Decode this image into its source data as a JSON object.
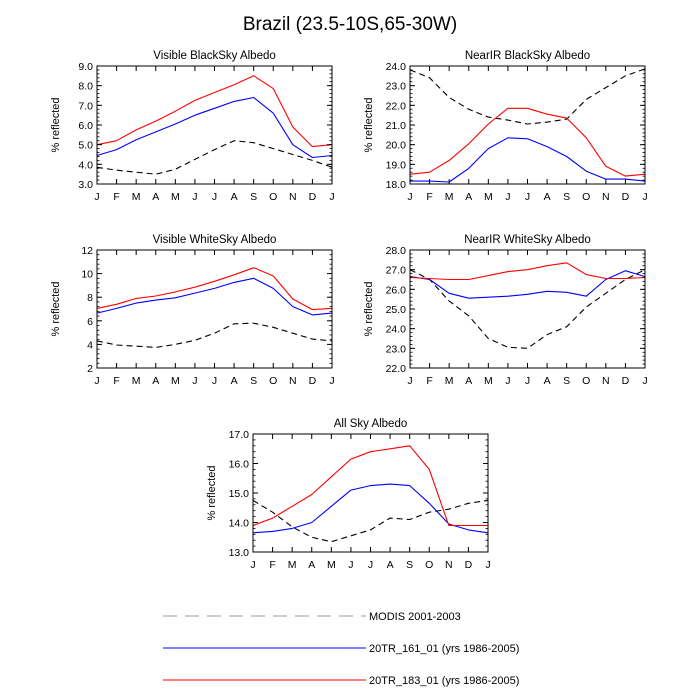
{
  "figure": {
    "title": "Brazil (23.5-10S,65-30W)",
    "months": [
      "J",
      "F",
      "M",
      "A",
      "M",
      "J",
      "J",
      "A",
      "S",
      "O",
      "N",
      "D",
      "J"
    ]
  },
  "legend": [
    {
      "label": "MODIS 2001-2003",
      "color": "#000000",
      "dash": true
    },
    {
      "label": "20TR_161_01 (yrs 1986-2005)",
      "color": "#0000ff",
      "dash": false
    },
    {
      "label": "20TR_183_01 (yrs 1986-2005)",
      "color": "#ff0000",
      "dash": false
    }
  ],
  "chart_data": [
    {
      "type": "line",
      "title": "Visible BlackSky Albedo",
      "xlabel": "",
      "ylabel": "% reflected",
      "categories": [
        "J",
        "F",
        "M",
        "A",
        "M",
        "J",
        "J",
        "A",
        "S",
        "O",
        "N",
        "D",
        "J"
      ],
      "ylim": [
        3.0,
        9.0
      ],
      "yticks": [
        "3.0",
        "4.0",
        "5.0",
        "6.0",
        "7.0",
        "8.0",
        "9.0"
      ],
      "series": [
        {
          "name": "MODIS 2001-2003",
          "color": "#000000",
          "dash": true,
          "values": [
            3.85,
            3.7,
            3.6,
            3.5,
            3.75,
            4.25,
            4.75,
            5.2,
            5.1,
            4.8,
            4.5,
            4.2,
            3.85
          ]
        },
        {
          "name": "20TR_161_01 (yrs 1986-2005)",
          "color": "#0000ff",
          "dash": false,
          "values": [
            4.45,
            4.75,
            5.25,
            5.65,
            6.05,
            6.5,
            6.85,
            7.2,
            7.4,
            6.6,
            5.0,
            4.35,
            4.45
          ]
        },
        {
          "name": "20TR_183_01 (yrs 1986-2005)",
          "color": "#ff0000",
          "dash": false,
          "values": [
            5.0,
            5.2,
            5.75,
            6.2,
            6.7,
            7.25,
            7.65,
            8.05,
            8.5,
            7.85,
            5.9,
            4.9,
            5.0
          ]
        }
      ]
    },
    {
      "type": "line",
      "title": "NearIR BlackSky Albedo",
      "xlabel": "",
      "ylabel": "% reflected",
      "categories": [
        "J",
        "F",
        "M",
        "A",
        "M",
        "J",
        "J",
        "A",
        "S",
        "O",
        "N",
        "D",
        "J"
      ],
      "ylim": [
        18.0,
        24.0
      ],
      "yticks": [
        "18.0",
        "19.0",
        "20.0",
        "21.0",
        "22.0",
        "23.0",
        "24.0"
      ],
      "series": [
        {
          "name": "MODIS 2001-2003",
          "color": "#000000",
          "dash": true,
          "values": [
            23.8,
            23.4,
            22.4,
            21.8,
            21.4,
            21.25,
            21.05,
            21.15,
            21.3,
            22.3,
            22.9,
            23.5,
            23.85
          ]
        },
        {
          "name": "20TR_161_01 (yrs 1986-2005)",
          "color": "#0000ff",
          "dash": false,
          "values": [
            18.15,
            18.15,
            18.1,
            18.8,
            19.8,
            20.35,
            20.3,
            19.9,
            19.4,
            18.65,
            18.25,
            18.25,
            18.15
          ]
        },
        {
          "name": "20TR_183_01 (yrs 1986-2005)",
          "color": "#ff0000",
          "dash": false,
          "values": [
            18.5,
            18.6,
            19.2,
            20.05,
            21.05,
            21.85,
            21.85,
            21.55,
            21.35,
            20.35,
            18.9,
            18.4,
            18.5
          ]
        }
      ]
    },
    {
      "type": "line",
      "title": "Visible WhiteSky Albedo",
      "xlabel": "",
      "ylabel": "% reflected",
      "categories": [
        "J",
        "F",
        "M",
        "A",
        "M",
        "J",
        "J",
        "A",
        "S",
        "O",
        "N",
        "D",
        "J"
      ],
      "ylim": [
        2,
        12
      ],
      "yticks": [
        "2",
        "4",
        "6",
        "8",
        "10",
        "12"
      ],
      "series": [
        {
          "name": "MODIS 2001-2003",
          "color": "#000000",
          "dash": true,
          "values": [
            4.3,
            3.95,
            3.85,
            3.75,
            4.0,
            4.35,
            4.95,
            5.75,
            5.8,
            5.45,
            4.95,
            4.45,
            4.3
          ]
        },
        {
          "name": "20TR_161_01 (yrs 1986-2005)",
          "color": "#0000ff",
          "dash": false,
          "values": [
            6.65,
            7.05,
            7.5,
            7.75,
            7.95,
            8.35,
            8.75,
            9.25,
            9.6,
            8.75,
            7.2,
            6.5,
            6.65
          ]
        },
        {
          "name": "20TR_183_01 (yrs 1986-2005)",
          "color": "#ff0000",
          "dash": false,
          "values": [
            7.05,
            7.4,
            7.9,
            8.1,
            8.45,
            8.85,
            9.35,
            9.9,
            10.5,
            9.8,
            7.85,
            6.95,
            7.05
          ]
        }
      ]
    },
    {
      "type": "line",
      "title": "NearIR WhiteSky Albedo",
      "xlabel": "",
      "ylabel": "% reflected",
      "categories": [
        "J",
        "F",
        "M",
        "A",
        "M",
        "J",
        "J",
        "A",
        "S",
        "O",
        "N",
        "D",
        "J"
      ],
      "ylim": [
        22.0,
        28.0
      ],
      "yticks": [
        "22.0",
        "23.0",
        "24.0",
        "25.0",
        "26.0",
        "27.0",
        "28.0"
      ],
      "series": [
        {
          "name": "MODIS 2001-2003",
          "color": "#000000",
          "dash": true,
          "values": [
            27.0,
            26.5,
            25.4,
            24.65,
            23.5,
            23.05,
            23.0,
            23.7,
            24.1,
            25.1,
            25.8,
            26.5,
            27.0
          ]
        },
        {
          "name": "20TR_161_01 (yrs 1986-2005)",
          "color": "#0000ff",
          "dash": false,
          "values": [
            26.65,
            26.5,
            25.8,
            25.55,
            25.6,
            25.65,
            25.75,
            25.9,
            25.85,
            25.65,
            26.5,
            26.95,
            26.65
          ]
        },
        {
          "name": "20TR_183_01 (yrs 1986-2005)",
          "color": "#ff0000",
          "dash": false,
          "values": [
            26.6,
            26.55,
            26.5,
            26.5,
            26.7,
            26.9,
            27.0,
            27.2,
            27.35,
            26.75,
            26.55,
            26.55,
            26.6
          ]
        }
      ]
    },
    {
      "type": "line",
      "title": "All Sky Albedo",
      "xlabel": "",
      "ylabel": "% reflected",
      "categories": [
        "J",
        "F",
        "M",
        "A",
        "M",
        "J",
        "J",
        "A",
        "S",
        "O",
        "N",
        "D",
        "J"
      ],
      "ylim": [
        13.0,
        17.0
      ],
      "yticks": [
        "13.0",
        "14.0",
        "15.0",
        "16.0",
        "17.0"
      ],
      "series": [
        {
          "name": "MODIS 2001-2003",
          "color": "#000000",
          "dash": true,
          "values": [
            14.75,
            14.35,
            13.85,
            13.5,
            13.35,
            13.55,
            13.75,
            14.15,
            14.1,
            14.35,
            14.45,
            14.65,
            14.75
          ]
        },
        {
          "name": "20TR_161_01 (yrs 1986-2005)",
          "color": "#0000ff",
          "dash": false,
          "values": [
            13.65,
            13.7,
            13.8,
            14.0,
            14.55,
            15.1,
            15.25,
            15.3,
            15.25,
            14.65,
            13.95,
            13.75,
            13.65
          ]
        },
        {
          "name": "20TR_183_01 (yrs 1986-2005)",
          "color": "#ff0000",
          "dash": false,
          "values": [
            13.9,
            14.15,
            14.55,
            14.95,
            15.55,
            16.15,
            16.4,
            16.5,
            16.6,
            15.8,
            13.9,
            13.9,
            13.9
          ]
        }
      ]
    }
  ]
}
